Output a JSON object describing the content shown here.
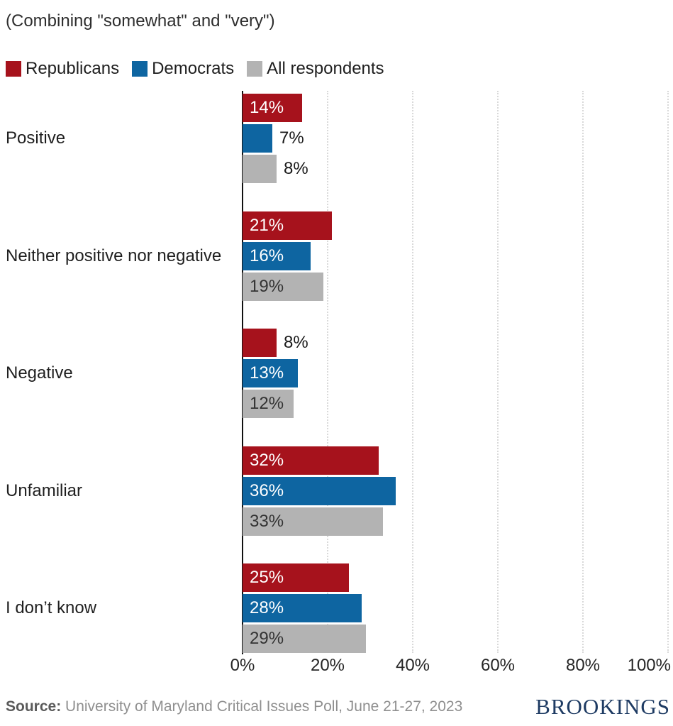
{
  "chart": {
    "subtitle": "(Combining \"somewhat\" and \"very\")"
  },
  "chart_data": {
    "type": "bar",
    "orientation": "horizontal",
    "categories": [
      "Positive",
      "Neither positive nor negative",
      "Negative",
      "Unfamiliar",
      "I don’t know"
    ],
    "series": [
      {
        "name": "Republicans",
        "color": "#a6121c",
        "values": [
          14,
          21,
          8,
          32,
          25
        ],
        "value_text_color": "#ffffff"
      },
      {
        "name": "Democrats",
        "color": "#0e65a1",
        "values": [
          7,
          16,
          13,
          36,
          28
        ],
        "value_text_color": "#ffffff"
      },
      {
        "name": "All respondents",
        "color": "#b3b3b3",
        "values": [
          8,
          19,
          12,
          33,
          29
        ],
        "value_text_color": "#333333"
      }
    ],
    "value_label_suffix": "%",
    "outside_label_color": "#1a1a1a",
    "xlim": [
      0,
      100
    ],
    "x_ticks": [
      {
        "value": 0,
        "label": "0%"
      },
      {
        "value": 20,
        "label": "20%"
      },
      {
        "value": 40,
        "label": "40%"
      },
      {
        "value": 60,
        "label": "60%"
      },
      {
        "value": 80,
        "label": "80%"
      },
      {
        "value": 100,
        "label": "100%"
      }
    ],
    "grid": "vertical-dotted",
    "legend_position": "top"
  },
  "footer": {
    "source_label": "Source:",
    "source_text": " University of Maryland Critical Issues Poll, June 21-27, 2023",
    "brand": "BROOKINGS"
  }
}
